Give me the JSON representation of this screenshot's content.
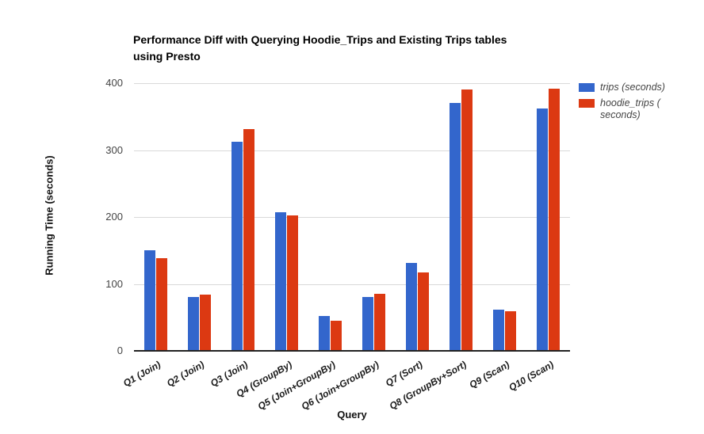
{
  "title_lines": [
    "Performance Diff with Querying Hoodie_Trips and Existing Trips tables",
    "using Presto"
  ],
  "chart_data": {
    "type": "bar",
    "title": "Performance Diff with Querying Hoodie_Trips and Existing Trips tables using Presto",
    "xlabel": "Query",
    "ylabel": "Running Time (seconds)",
    "ylim": [
      0,
      400
    ],
    "yticks": [
      0,
      100,
      200,
      300,
      400
    ],
    "grid": true,
    "legend_position": "right",
    "categories": [
      "Q1 (Join)",
      "Q2 (Join)",
      "Q3 (Join)",
      "Q4 (GroupBy)",
      "Q5 (Join+GroupBy)",
      "Q6 (Join+GroupBy)",
      "Q7 (Sort)",
      "Q8 (GroupBy+Sort)",
      "Q9 (Scan)",
      "Q10 (Scan)"
    ],
    "series": [
      {
        "name": "trips (seconds)",
        "color": "#3366cc",
        "values": [
          150,
          81,
          313,
          207,
          52,
          81,
          131,
          370,
          61,
          362
        ]
      },
      {
        "name": "hoodie_trips (seconds)",
        "color": "#dc3912",
        "values": [
          138,
          84,
          331,
          202,
          45,
          85,
          117,
          390,
          59,
          392
        ]
      }
    ]
  },
  "legend": {
    "items": [
      {
        "lines": [
          "trips (seconds)"
        ],
        "color": "#3366cc"
      },
      {
        "lines": [
          "hoodie_trips (",
          "seconds)"
        ],
        "color": "#dc3912"
      }
    ]
  },
  "colors": {
    "gridline": "#d9d9d9",
    "axisline": "#222222",
    "tick_text": "#444444"
  }
}
